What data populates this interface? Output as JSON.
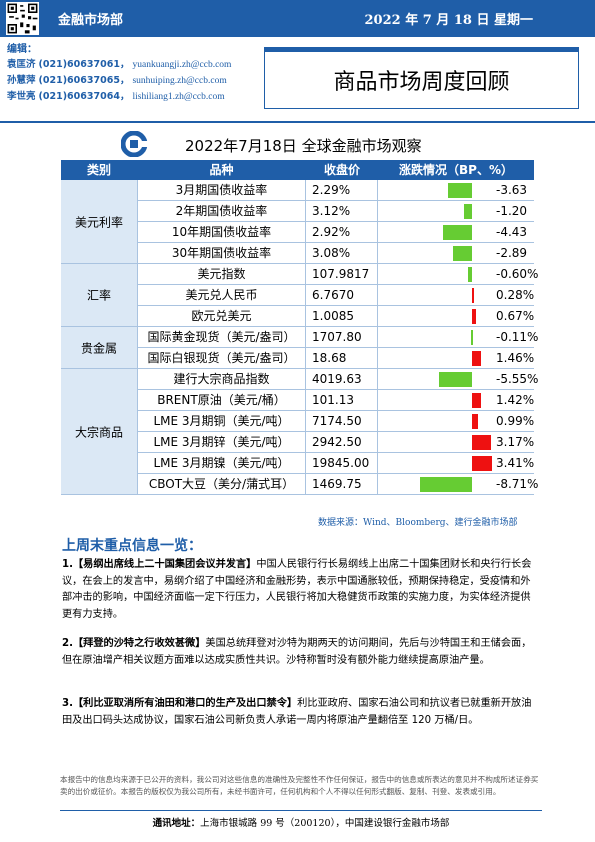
{
  "header": {
    "dept": "金融市场部",
    "date": "2022 年 7 月 18 日  星期一"
  },
  "editors": {
    "label": "编辑：",
    "people": [
      {
        "name": "袁匡济",
        "phone": "(021)60637061，",
        "email": "yuankuangji.zh@ccb.com"
      },
      {
        "name": "孙慧萍",
        "phone": "(021)60637065，",
        "email": "sunhuiping.zh@ccb.com"
      },
      {
        "name": "李世亮",
        "phone": "(021)60637064，",
        "email": "lishiliang1.zh@ccb.com"
      }
    ]
  },
  "doc_title": "商品市场周度回顾",
  "table": {
    "title": "2022年7月18日 全球金融市场观察",
    "headers": [
      "类别",
      "品种",
      "收盘价",
      "涨跌情况（BP、%）"
    ],
    "groups": [
      {
        "name": "美元利率",
        "rows": [
          {
            "item": "3月期国债收益率",
            "close": "2.29%",
            "change": "-3.63",
            "value": -3.63,
            "scale": "bp"
          },
          {
            "item": "2年期国债收益率",
            "close": "3.12%",
            "change": "-1.20",
            "value": -1.2,
            "scale": "bp"
          },
          {
            "item": "10年期国债收益率",
            "close": "2.92%",
            "change": "-4.43",
            "value": -4.43,
            "scale": "bp"
          },
          {
            "item": "30年期国债收益率",
            "close": "3.08%",
            "change": "-2.89",
            "value": -2.89,
            "scale": "bp"
          }
        ]
      },
      {
        "name": "汇率",
        "rows": [
          {
            "item": "美元指数",
            "close": "107.9817",
            "change": "-0.60%",
            "value": -0.6,
            "scale": "pct"
          },
          {
            "item": "美元兑人民币",
            "close": "6.7670",
            "change": "0.28%",
            "value": 0.28,
            "scale": "pct"
          },
          {
            "item": "欧元兑美元",
            "close": "1.0085",
            "change": "0.67%",
            "value": 0.67,
            "scale": "pct"
          }
        ]
      },
      {
        "name": "贵金属",
        "rows": [
          {
            "item": "国际黄金现货（美元/盎司）",
            "close": "1707.80",
            "change": "-0.11%",
            "value": -0.11,
            "scale": "pct"
          },
          {
            "item": "国际白银现货（美元/盎司）",
            "close": "18.68",
            "change": "1.46%",
            "value": 1.46,
            "scale": "pct"
          }
        ]
      },
      {
        "name": "大宗商品",
        "rows": [
          {
            "item": "建行大宗商品指数",
            "close": "4019.63",
            "change": "-5.55%",
            "value": -5.55,
            "scale": "pct"
          },
          {
            "item": "BRENT原油（美元/桶）",
            "close": "101.13",
            "change": "1.42%",
            "value": 1.42,
            "scale": "pct"
          },
          {
            "item": "LME 3月期铜（美元/吨）",
            "close": "7174.50",
            "change": "0.99%",
            "value": 0.99,
            "scale": "pct"
          },
          {
            "item": "LME 3月期锌（美元/吨）",
            "close": "2942.50",
            "change": "3.17%",
            "value": 3.17,
            "scale": "pct"
          },
          {
            "item": "LME 3月期镍（美元/吨）",
            "close": "19845.00",
            "change": "3.41%",
            "value": 3.41,
            "scale": "pct"
          },
          {
            "item": "CBOT大豆（美分/蒲式耳）",
            "close": "1469.75",
            "change": "-8.71%",
            "value": -8.71,
            "scale": "pct"
          }
        ]
      }
    ],
    "source": "数据来源：Wind、Bloomberg、建行金融市场部",
    "colors": {
      "up": "#ee1111",
      "down": "#66cc33"
    }
  },
  "highlights": {
    "title": "上周末重点信息一览：",
    "items": [
      {
        "num": "1.",
        "head": "【易纲出席线上二十国集团会议并发言】",
        "body": "中国人民银行行长易纲线上出席二十国集团财长和央行行长会议，在会上的发言中，易纲介绍了中国经济和金融形势，表示中国通胀较低，预期保持稳定，受疫情和外部冲击的影响，中国经济面临一定下行压力，人民银行将加大稳健货币政策的实施力度，为实体经济提供更有力支持。"
      },
      {
        "num": "2.",
        "head": "【拜登的沙特之行收效甚微】",
        "body": "美国总统拜登对沙特为期两天的访问期间，先后与沙特国王和王储会面，但在原油增产相关议题方面难以达成实质性共识。沙特称暂时没有额外能力继续提高原油产量。"
      },
      {
        "num": "3.",
        "head": "【利比亚取消所有油田和港口的生产及出口禁令】",
        "body": "利比亚政府、国家石油公司和抗议者已就重新开放油田及出口码头达成协议，国家石油公司新负责人承诺一周内将原油产量翻倍至 120 万桶/日。"
      }
    ]
  },
  "disclaimer": "本报告中的信息均来源于已公开的资料，我公司对这些信息的准确性及完整性不作任何保证，报告中的信息或所表达的意见并不构成所述证券买卖的出价或征价。本报告的版权仅为我公司所有，未经书面许可，任何机构和个人不得以任何形式翻版、复制、刊登、发表或引用。",
  "footer": {
    "label": "通讯地址：",
    "address": "上海市银城路 99 号（200120），中国建设银行金融市场部"
  }
}
